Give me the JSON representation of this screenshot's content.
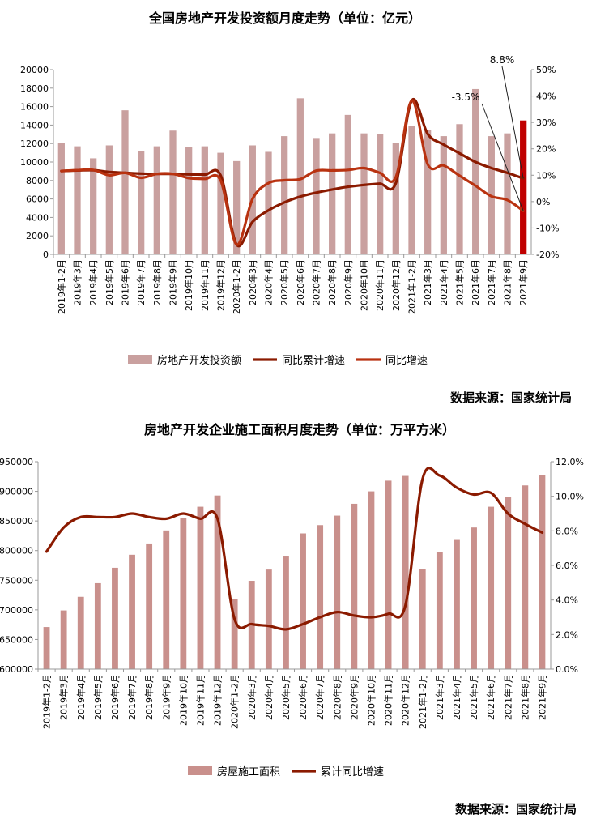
{
  "source_label": "数据来源：国家统计局",
  "chart_data": [
    {
      "type": "bar+line",
      "title": "全国房地产开发投资额月度走势（单位：亿元）",
      "categories": [
        "2019年1-2月",
        "2019年3月",
        "2019年4月",
        "2019年5月",
        "2019年6月",
        "2019年7月",
        "2019年8月",
        "2019年9月",
        "2019年10月",
        "2019年11月",
        "2019年12月",
        "2020年1-2月",
        "2020年3月",
        "2020年4月",
        "2020年5月",
        "2020年6月",
        "2020年7月",
        "2020年8月",
        "2020年9月",
        "2020年10月",
        "2020年11月",
        "2020年12月",
        "2021年1-2月",
        "2021年3月",
        "2021年4月",
        "2021年5月",
        "2021年6月",
        "2021年7月",
        "2021年8月",
        "2021年9月"
      ],
      "y_left": {
        "min": 0,
        "max": 20000,
        "step": 2000,
        "ticks": [
          "0",
          "2000",
          "4000",
          "6000",
          "8000",
          "10000",
          "12000",
          "14000",
          "16000",
          "18000",
          "20000"
        ]
      },
      "y_right": {
        "min": -20,
        "max": 50,
        "step": 10,
        "ticks": [
          "-20%",
          "-10%",
          "0%",
          "10%",
          "20%",
          "30%",
          "40%",
          "50%"
        ]
      },
      "legend_position": "bottom",
      "grid": false,
      "series": [
        {
          "name": "房地产开发投资额",
          "kind": "bar",
          "axis": "left",
          "color": "#c9a09f",
          "highlight_color": "#c00000",
          "highlight_index": 29,
          "values": [
            12100,
            11700,
            10400,
            11800,
            15600,
            11200,
            11700,
            13400,
            11600,
            11700,
            11000,
            10100,
            11800,
            11100,
            12800,
            16900,
            12600,
            13100,
            15100,
            13100,
            13000,
            12100,
            13900,
            13500,
            12800,
            14100,
            17900,
            12800,
            13100,
            14500
          ]
        },
        {
          "name": "同比累计增速",
          "kind": "line",
          "axis": "right",
          "color": "#8b1a00",
          "values": [
            11.6,
            11.8,
            11.9,
            11.2,
            10.9,
            10.6,
            10.5,
            10.5,
            10.3,
            10.2,
            9.9,
            -16.3,
            -7.7,
            -3.3,
            -0.3,
            1.9,
            3.4,
            4.6,
            5.6,
            6.3,
            6.8,
            7.0,
            38.3,
            25.6,
            21.6,
            18.3,
            15.0,
            12.7,
            10.9,
            8.8
          ]
        },
        {
          "name": "同比增速",
          "kind": "line",
          "axis": "right",
          "color": "#b93210",
          "values": [
            11.6,
            11.9,
            12.0,
            10.0,
            10.9,
            9.0,
            10.5,
            10.5,
            8.9,
            8.6,
            8.0,
            -16.3,
            1.0,
            7.0,
            8.1,
            8.5,
            11.7,
            11.8,
            12.0,
            12.7,
            10.9,
            9.3,
            38.3,
            14.1,
            13.7,
            9.8,
            6.0,
            2.0,
            0.6,
            -3.5
          ]
        }
      ],
      "annotations": [
        {
          "text": "8.8%",
          "target_series": "同比累计增速",
          "target_index": 29
        },
        {
          "text": "-3.5%",
          "target_series": "同比增速",
          "target_index": 29
        }
      ]
    },
    {
      "type": "bar+line",
      "title": "房地产开发企业施工面积月度走势（单位：万平方米）",
      "categories": [
        "2019年1-2月",
        "2019年3月",
        "2019年4月",
        "2019年5月",
        "2019年6月",
        "2019年7月",
        "2019年8月",
        "2019年9月",
        "2019年10月",
        "2019年11月",
        "2019年12月",
        "2020年1-2月",
        "2020年3月",
        "2020年4月",
        "2020年5月",
        "2020年6月",
        "2020年7月",
        "2020年8月",
        "2020年9月",
        "2020年10月",
        "2020年11月",
        "2020年12月",
        "2021年1-2月",
        "2021年3月",
        "2021年4月",
        "2021年5月",
        "2021年6月",
        "2021年7月",
        "2021年8月",
        "2021年9月"
      ],
      "y_left": {
        "min": 600000,
        "max": 950000,
        "step": 50000,
        "ticks": [
          "600000",
          "650000",
          "700000",
          "750000",
          "800000",
          "850000",
          "900000",
          "950000"
        ]
      },
      "y_right": {
        "min": 0,
        "max": 12,
        "step": 2,
        "ticks": [
          "0.0%",
          "2.0%",
          "4.0%",
          "6.0%",
          "8.0%",
          "10.0%",
          "12.0%"
        ]
      },
      "legend_position": "bottom",
      "grid": false,
      "series": [
        {
          "name": "房屋施工面积",
          "kind": "bar",
          "axis": "left",
          "color": "#c9908c",
          "values": [
            671000,
            699000,
            722000,
            745000,
            771000,
            793000,
            812000,
            834000,
            855000,
            874000,
            893000,
            718000,
            749000,
            768000,
            790000,
            829000,
            843000,
            859000,
            879000,
            900000,
            918000,
            926000,
            769000,
            797000,
            818000,
            839000,
            874000,
            891000,
            910000,
            927000
          ]
        },
        {
          "name": "累计同比增速",
          "kind": "line",
          "axis": "right",
          "color": "#8b1a00",
          "values": [
            6.8,
            8.2,
            8.8,
            8.8,
            8.8,
            9.0,
            8.8,
            8.7,
            9.0,
            8.7,
            8.7,
            2.9,
            2.6,
            2.5,
            2.3,
            2.6,
            3.0,
            3.3,
            3.1,
            3.0,
            3.2,
            3.7,
            11.0,
            11.2,
            10.5,
            10.1,
            10.2,
            9.0,
            8.4,
            7.9
          ]
        }
      ]
    }
  ]
}
